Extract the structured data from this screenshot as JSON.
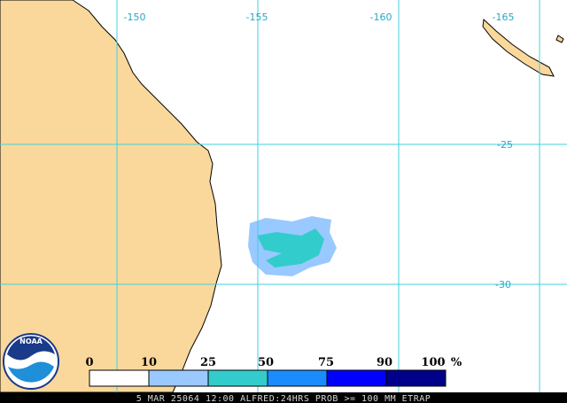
{
  "map": {
    "longitude_labels": [
      "-150",
      "-155",
      "-160",
      "-165"
    ],
    "latitude_labels": [
      "-25",
      "-30"
    ],
    "legend": {
      "labels": [
        "0",
        "10",
        "25",
        "50",
        "75",
        "90",
        "100"
      ],
      "unit": "%"
    },
    "logo": "NOAA",
    "footer": "5 MAR 25064 12:00 ALFRED:24HRS PROB >= 100 MM ETRAP"
  }
}
